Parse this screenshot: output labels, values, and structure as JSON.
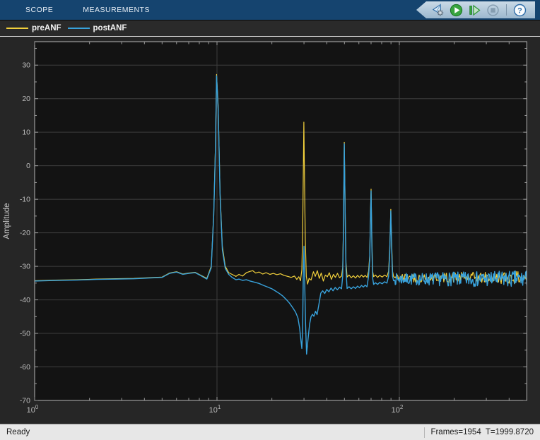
{
  "window": {
    "title": "Scope"
  },
  "tabs": {
    "scope": "SCOPE",
    "measurements": "MEASUREMENTS"
  },
  "toolbar": {
    "icons": [
      "stepping-options-icon",
      "run-icon",
      "step-forward-icon",
      "stop-icon",
      "help-icon"
    ],
    "run_color": "#38a43f",
    "disabled_color": "#7d95a9",
    "help_color": "#2f6da8"
  },
  "status": {
    "left": "Ready",
    "right": "Frames=1954  T=1999.8720"
  },
  "chart_data": {
    "type": "line",
    "xscale": "log",
    "title": "",
    "xlabel": "",
    "ylabel": "Amplitude",
    "xlim": [
      1,
      500
    ],
    "ylim": [
      -70,
      37
    ],
    "grid": true,
    "legend_position": "top-strip",
    "background": "#131313",
    "grid_color": "#3e3e3e",
    "axis_color": "#b4b4b4",
    "tick_label_color": "#bdbdbd",
    "x_ticks": [
      {
        "base": "10",
        "exp": "0",
        "value": 1
      },
      {
        "base": "10",
        "exp": "1",
        "value": 10
      },
      {
        "base": "10",
        "exp": "2",
        "value": 100
      }
    ],
    "y_ticks": [
      30,
      20,
      10,
      0,
      -10,
      -20,
      -30,
      -40,
      -50,
      -60,
      -70
    ],
    "series": [
      {
        "name": "preANF",
        "color": "#f2d03c",
        "width": 1.2,
        "anchors": [
          [
            1,
            -34.3
          ],
          [
            1.3,
            -34.1
          ],
          [
            1.7,
            -34.0
          ],
          [
            2.2,
            -33.8
          ],
          [
            2.8,
            -33.7
          ],
          [
            3.5,
            -33.6
          ],
          [
            4.2,
            -33.4
          ],
          [
            5,
            -33.2
          ],
          [
            5.5,
            -32.0
          ],
          [
            6,
            -31.6
          ],
          [
            6.5,
            -32.3
          ],
          [
            7,
            -32.0
          ],
          [
            7.6,
            -31.8
          ],
          [
            8.1,
            -32.6
          ],
          [
            8.8,
            -33.6
          ],
          [
            9.3,
            -30.0
          ],
          [
            9.6,
            -14.0
          ],
          [
            9.8,
            5.0
          ],
          [
            9.95,
            27.2
          ],
          [
            10.15,
            18.0
          ],
          [
            10.4,
            -8.0
          ],
          [
            10.7,
            -24.0
          ],
          [
            11.1,
            -30.0
          ],
          [
            11.6,
            -31.9
          ],
          [
            12.1,
            -32.4
          ],
          [
            12.7,
            -33.0
          ],
          [
            13.2,
            -32.4
          ],
          [
            13.8,
            -32.9
          ],
          [
            14.5,
            -31.9
          ],
          [
            15.2,
            -31.5
          ],
          [
            15.7,
            -31.3
          ],
          [
            16.3,
            -32.0
          ],
          [
            17,
            -31.7
          ],
          [
            17.8,
            -32.3
          ],
          [
            18.6,
            -31.9
          ],
          [
            19.5,
            -32.4
          ],
          [
            20.4,
            -32.1
          ],
          [
            21.3,
            -32.5
          ],
          [
            22.3,
            -32.2
          ],
          [
            23.3,
            -32.7
          ],
          [
            24.4,
            -33.0
          ],
          [
            25.5,
            -33.3
          ],
          [
            26.6,
            -32.9
          ],
          [
            27.4,
            -33.9
          ],
          [
            28.1,
            -33.1
          ],
          [
            28.7,
            -34.3
          ],
          [
            29.2,
            -31.0
          ],
          [
            29.5,
            -20.0
          ],
          [
            29.75,
            -2.0
          ],
          [
            29.95,
            13.0
          ],
          [
            30.2,
            -4.0
          ],
          [
            30.5,
            -22.0
          ],
          [
            30.9,
            -33.0
          ],
          [
            31.4,
            -35.3
          ],
          [
            32,
            -33.6
          ],
          [
            32.8,
            -34.1
          ],
          [
            33.8,
            -31.6
          ],
          [
            34.6,
            -33.0
          ],
          [
            35.5,
            -31.3
          ],
          [
            36.4,
            -33.6
          ],
          [
            37.3,
            -32.0
          ],
          [
            38.3,
            -34.4
          ],
          [
            39.3,
            -32.6
          ],
          [
            40.3,
            -33.1
          ],
          [
            41.3,
            -31.9
          ],
          [
            42.4,
            -33.9
          ],
          [
            43.5,
            -32.4
          ],
          [
            44.6,
            -33.3
          ],
          [
            45.8,
            -32.1
          ],
          [
            47,
            -33.4
          ],
          [
            48.2,
            -32.9
          ],
          [
            48.9,
            -30.5
          ],
          [
            49.4,
            -18.0
          ],
          [
            49.9,
            7.0
          ],
          [
            50.5,
            -14.0
          ],
          [
            51,
            -29.0
          ],
          [
            51.7,
            -33.2
          ],
          [
            53,
            -32.6
          ],
          [
            54.5,
            -33.4
          ],
          [
            56,
            -32.8
          ],
          [
            57.5,
            -33.5
          ],
          [
            59,
            -32.7
          ],
          [
            60.5,
            -33.3
          ],
          [
            62,
            -32.6
          ],
          [
            63.5,
            -33.2
          ],
          [
            65,
            -32.7
          ],
          [
            66.5,
            -33.3
          ],
          [
            67.8,
            -31.5
          ],
          [
            68.8,
            -27.0
          ],
          [
            69.5,
            -14.0
          ],
          [
            70,
            -7.0
          ],
          [
            70.7,
            -22.0
          ],
          [
            71.4,
            -31.5
          ],
          [
            72.3,
            -33.1
          ],
          [
            74,
            -32.6
          ],
          [
            76,
            -33.3
          ],
          [
            78,
            -32.7
          ],
          [
            80.5,
            -33.2
          ],
          [
            83,
            -32.6
          ],
          [
            85.5,
            -33.1
          ],
          [
            87.3,
            -31.5
          ],
          [
            88.6,
            -25.0
          ],
          [
            89.8,
            -13.0
          ],
          [
            90.8,
            -23.0
          ],
          [
            91.8,
            -31.5
          ],
          [
            93,
            -33.0
          ],
          [
            94.5,
            -33.4
          ]
        ],
        "noise": {
          "from": 95,
          "to": 500,
          "points": 150,
          "base": -33.4,
          "amp_start": 1.3,
          "amp_end": 1.9,
          "seed": 42
        }
      },
      {
        "name": "postANF",
        "color": "#38a2dc",
        "width": 1.4,
        "anchors": [
          [
            1,
            -34.4
          ],
          [
            1.3,
            -34.2
          ],
          [
            1.7,
            -34.1
          ],
          [
            2.2,
            -33.9
          ],
          [
            2.8,
            -33.8
          ],
          [
            3.5,
            -33.7
          ],
          [
            4.2,
            -33.5
          ],
          [
            5,
            -33.3
          ],
          [
            5.5,
            -32.1
          ],
          [
            6,
            -31.7
          ],
          [
            6.5,
            -32.4
          ],
          [
            7,
            -32.1
          ],
          [
            7.6,
            -31.9
          ],
          [
            8.1,
            -32.7
          ],
          [
            8.8,
            -33.8
          ],
          [
            9.3,
            -30.4
          ],
          [
            9.6,
            -14.6
          ],
          [
            9.8,
            4.0
          ],
          [
            9.95,
            26.8
          ],
          [
            10.15,
            17.0
          ],
          [
            10.4,
            -9.0
          ],
          [
            10.7,
            -25.0
          ],
          [
            11.1,
            -30.6
          ],
          [
            11.6,
            -32.4
          ],
          [
            12.1,
            -33.3
          ],
          [
            12.7,
            -34.0
          ],
          [
            13.2,
            -33.8
          ],
          [
            13.8,
            -34.2
          ],
          [
            14.5,
            -34.0
          ],
          [
            15.2,
            -34.4
          ],
          [
            16,
            -34.7
          ],
          [
            17,
            -35.1
          ],
          [
            18,
            -35.7
          ],
          [
            19,
            -36.2
          ],
          [
            20,
            -36.7
          ],
          [
            21,
            -37.4
          ],
          [
            22,
            -38.1
          ],
          [
            23,
            -38.9
          ],
          [
            24,
            -39.9
          ],
          [
            25,
            -41.0
          ],
          [
            26,
            -42.3
          ],
          [
            27,
            -43.7
          ],
          [
            27.8,
            -45.4
          ],
          [
            28.4,
            -48.4
          ],
          [
            28.9,
            -52.4
          ],
          [
            29.2,
            -54.5
          ],
          [
            29.5,
            -48.0
          ],
          [
            29.75,
            -32.0
          ],
          [
            30,
            -24.0
          ],
          [
            30.25,
            -34.0
          ],
          [
            30.6,
            -47.0
          ],
          [
            31,
            -56.2
          ],
          [
            31.6,
            -51.5
          ],
          [
            32.2,
            -47.3
          ],
          [
            32.8,
            -45.0
          ],
          [
            33.4,
            -44.3
          ],
          [
            34,
            -44.9
          ],
          [
            34.7,
            -43.4
          ],
          [
            35.4,
            -44.4
          ],
          [
            36.2,
            -41.4
          ],
          [
            37.1,
            -38.0
          ],
          [
            38,
            -37.3
          ],
          [
            39,
            -38.1
          ],
          [
            40,
            -36.9
          ],
          [
            41.1,
            -37.6
          ],
          [
            42.2,
            -36.5
          ],
          [
            43.3,
            -37.3
          ],
          [
            44.5,
            -36.3
          ],
          [
            45.7,
            -37.0
          ],
          [
            47,
            -36.2
          ],
          [
            48.2,
            -36.7
          ],
          [
            48.9,
            -33.0
          ],
          [
            49.4,
            -19.0
          ],
          [
            49.9,
            6.5
          ],
          [
            50.5,
            -16.0
          ],
          [
            51,
            -31.0
          ],
          [
            51.7,
            -36.6
          ],
          [
            53,
            -36.1
          ],
          [
            54.5,
            -36.7
          ],
          [
            56,
            -36.1
          ],
          [
            57.5,
            -36.6
          ],
          [
            59,
            -35.9
          ],
          [
            60.5,
            -36.4
          ],
          [
            62,
            -35.7
          ],
          [
            63.5,
            -36.2
          ],
          [
            65,
            -35.6
          ],
          [
            66.5,
            -36.1
          ],
          [
            67.8,
            -33.0
          ],
          [
            68.8,
            -28.0
          ],
          [
            69.5,
            -15.0
          ],
          [
            70,
            -7.5
          ],
          [
            70.7,
            -24.0
          ],
          [
            71.4,
            -33.5
          ],
          [
            72.3,
            -35.4
          ],
          [
            74,
            -34.9
          ],
          [
            76,
            -35.4
          ],
          [
            78,
            -34.8
          ],
          [
            80.5,
            -35.2
          ],
          [
            83,
            -34.6
          ],
          [
            85.5,
            -35.0
          ],
          [
            87.3,
            -33.0
          ],
          [
            88.6,
            -26.0
          ],
          [
            89.8,
            -13.5
          ],
          [
            90.8,
            -25.0
          ],
          [
            91.8,
            -33.0
          ],
          [
            93,
            -34.3
          ],
          [
            94.5,
            -34.1
          ]
        ],
        "noise": {
          "from": 95,
          "to": 500,
          "points": 230,
          "base": -33.8,
          "amp_start": 1.7,
          "amp_end": 2.6,
          "seed": 7
        }
      }
    ]
  }
}
